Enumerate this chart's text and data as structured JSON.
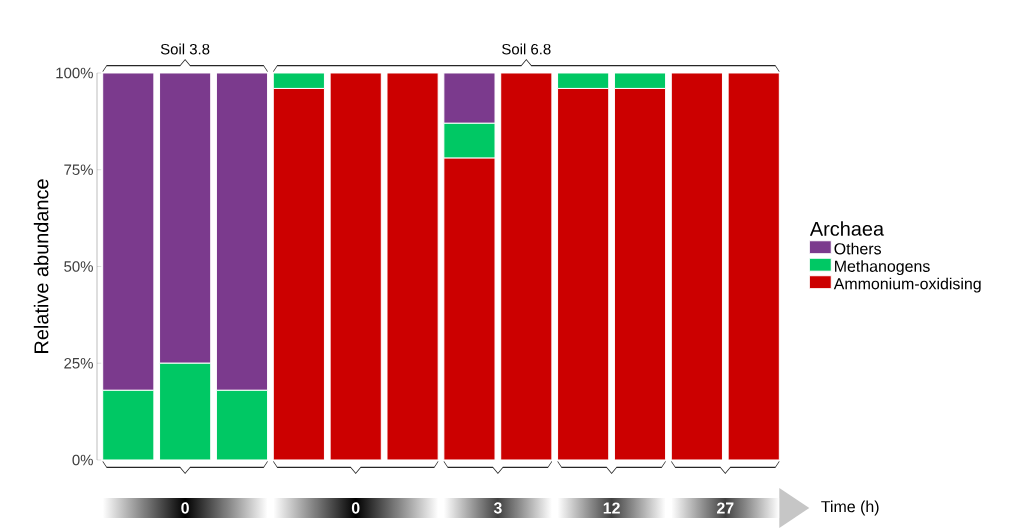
{
  "chart_data": {
    "type": "bar",
    "stacked": true,
    "ylabel": "Relative abundance",
    "legend_title": "Archaea",
    "legend": "right",
    "categories": [
      null,
      null,
      null,
      null,
      null,
      null,
      null,
      null,
      null,
      null,
      null,
      null
    ],
    "ylim": [
      0,
      100
    ],
    "yticks": [
      {
        "value": 0,
        "label": "0%"
      },
      {
        "value": 25,
        "label": "25%"
      },
      {
        "value": 50,
        "label": "50%"
      },
      {
        "value": 75,
        "label": "75%"
      },
      {
        "value": 100,
        "label": "100%"
      }
    ],
    "series": [
      {
        "name": "Ammonium-oxidising",
        "color": "#cc0000",
        "values": [
          0,
          0,
          0,
          96,
          100,
          100,
          78,
          100,
          96,
          96,
          100,
          100
        ]
      },
      {
        "name": "Methanogens",
        "color": "#00c864",
        "values": [
          18,
          25,
          18,
          4,
          0,
          0,
          9,
          0,
          4,
          4,
          0,
          0
        ]
      },
      {
        "name": "Others",
        "color": "#7b3a8d",
        "values": [
          82,
          75,
          82,
          0,
          0,
          0,
          13,
          0,
          0,
          0,
          0,
          0
        ]
      }
    ],
    "annotations": [
      "Soil 3.8",
      "Soil 6.8",
      "0",
      "0",
      "3",
      "12",
      "27",
      "Time (h)"
    ]
  }
}
